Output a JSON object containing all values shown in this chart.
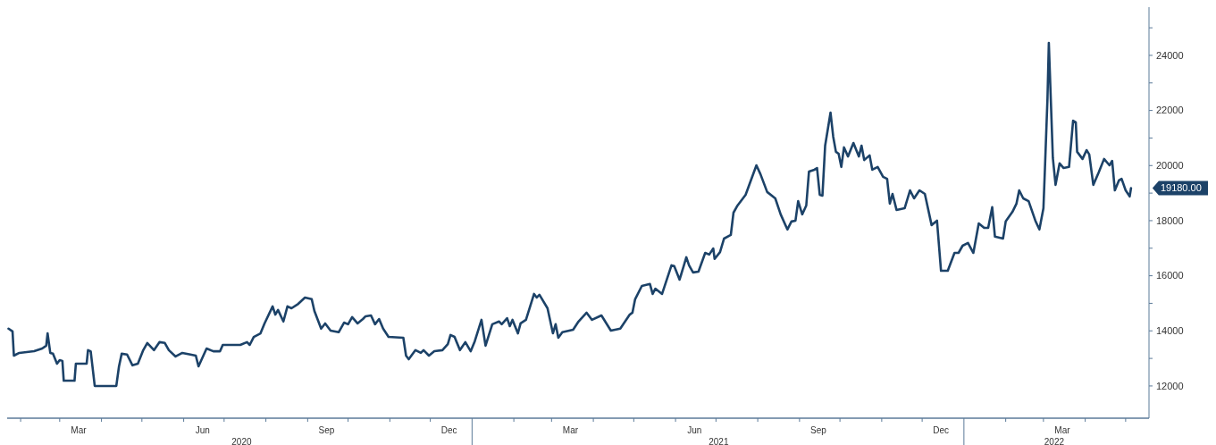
{
  "chart_data": {
    "type": "line",
    "xlim": [
      "2020-01-22",
      "2022-05-17"
    ],
    "x2lim": [
      "2020-01-22",
      "2022-05-17"
    ],
    "ylim": [
      10830,
      25750
    ],
    "xticks": [
      {
        "value": "2020-02-01",
        "label": null
      },
      {
        "value": "2020-03-01",
        "label": null
      },
      {
        "value": "2020-03-15",
        "label": "Mar"
      },
      {
        "value": "2020-04-01",
        "label": null
      },
      {
        "value": "2020-05-01",
        "label": null
      },
      {
        "value": "2020-06-01",
        "label": null
      },
      {
        "value": "2020-06-15",
        "label": "Jun"
      },
      {
        "value": "2020-07-01",
        "label": null
      },
      {
        "value": "2020-08-01",
        "label": null
      },
      {
        "value": "2020-09-01",
        "label": null
      },
      {
        "value": "2020-09-15",
        "label": "Sep"
      },
      {
        "value": "2020-10-01",
        "label": null
      },
      {
        "value": "2020-11-01",
        "label": null
      },
      {
        "value": "2020-12-01",
        "label": null
      },
      {
        "value": "2020-12-15",
        "label": "Dec"
      },
      {
        "value": "2021-02-01",
        "label": null
      },
      {
        "value": "2021-03-01",
        "label": null
      },
      {
        "value": "2021-03-15",
        "label": "Mar"
      },
      {
        "value": "2021-04-01",
        "label": null
      },
      {
        "value": "2021-05-01",
        "label": null
      },
      {
        "value": "2021-06-01",
        "label": null
      },
      {
        "value": "2021-06-15",
        "label": "Jun"
      },
      {
        "value": "2021-07-01",
        "label": null
      },
      {
        "value": "2021-08-01",
        "label": null
      },
      {
        "value": "2021-09-01",
        "label": null
      },
      {
        "value": "2021-09-15",
        "label": "Sep"
      },
      {
        "value": "2021-10-01",
        "label": null
      },
      {
        "value": "2021-11-01",
        "label": null
      },
      {
        "value": "2021-12-01",
        "label": null
      },
      {
        "value": "2021-12-15",
        "label": "Dec"
      },
      {
        "value": "2022-02-01",
        "label": null
      },
      {
        "value": "2022-03-01",
        "label": null
      },
      {
        "value": "2022-03-15",
        "label": "Mar"
      },
      {
        "value": "2022-04-01",
        "label": null
      },
      {
        "value": "2022-05-01",
        "label": null
      }
    ],
    "x2ticks": [
      {
        "value": "2020-07-14",
        "label": "2020"
      },
      {
        "value": "2021-07-03",
        "label": "2021"
      },
      {
        "value": "2022-03-09",
        "label": "2022"
      }
    ],
    "yticks": [
      12000,
      {
        "value": 13000,
        "label": null
      },
      14000,
      {
        "value": 15000,
        "label": null
      },
      16000,
      {
        "value": 17000,
        "label": null
      },
      18000,
      {
        "value": 19000,
        "label": null
      },
      20000,
      {
        "value": 21000,
        "label": null
      },
      22000,
      {
        "value": 23000,
        "label": null
      },
      24000,
      {
        "value": 25000,
        "label": null
      }
    ],
    "annotations": [
      {
        "text": "19180.00",
        "x": "2022-05-05",
        "y": 19180
      }
    ],
    "series": [
      {
        "color": "#1c4268",
        "x": [
          "2020-01-23",
          "2020-01-26",
          "2020-01-27",
          "2020-01-31",
          "2020-02-11",
          "2020-02-17",
          "2020-02-20",
          "2020-02-21",
          "2020-02-23",
          "2020-02-25",
          "2020-02-28",
          "2020-03-01",
          "2020-03-03",
          "2020-03-04",
          "2020-03-12",
          "2020-03-13",
          "2020-03-21",
          "2020-03-22",
          "2020-03-24",
          "2020-03-27",
          "2020-04-12",
          "2020-04-14",
          "2020-04-16",
          "2020-04-20",
          "2020-04-24",
          "2020-04-28",
          "2020-05-02",
          "2020-05-05",
          "2020-05-10",
          "2020-05-14",
          "2020-05-18",
          "2020-05-21",
          "2020-05-26",
          "2020-05-31",
          "2020-06-06",
          "2020-06-10",
          "2020-06-12",
          "2020-06-18",
          "2020-06-23",
          "2020-06-28",
          "2020-06-30",
          "2020-07-13",
          "2020-07-18",
          "2020-07-20",
          "2020-07-23",
          "2020-07-28",
          "2020-07-31",
          "2020-08-06",
          "2020-08-08",
          "2020-08-10",
          "2020-08-14",
          "2020-08-17",
          "2020-08-20",
          "2020-08-25",
          "2020-08-30",
          "2020-09-04",
          "2020-09-06",
          "2020-09-11",
          "2020-09-14",
          "2020-09-18",
          "2020-09-24",
          "2020-09-28",
          "2020-10-01",
          "2020-10-04",
          "2020-10-08",
          "2020-10-12",
          "2020-10-14",
          "2020-10-18",
          "2020-10-21",
          "2020-10-24",
          "2020-10-27",
          "2020-10-31",
          "2020-11-11",
          "2020-11-13",
          "2020-11-15",
          "2020-11-20",
          "2020-11-24",
          "2020-11-26",
          "2020-11-30",
          "2020-12-04",
          "2020-12-10",
          "2020-12-14",
          "2020-12-16",
          "2020-12-19",
          "2020-12-23",
          "2020-12-27",
          "2020-12-31",
          "2021-01-03",
          "2021-01-08",
          "2021-01-11",
          "2021-01-16",
          "2021-01-21",
          "2021-01-23",
          "2021-01-27",
          "2021-01-29",
          "2021-01-31",
          "2021-02-04",
          "2021-02-06",
          "2021-02-10",
          "2021-02-16",
          "2021-02-18",
          "2021-02-20",
          "2021-02-26",
          "2021-03-02",
          "2021-03-04",
          "2021-03-06",
          "2021-03-09",
          "2021-03-17",
          "2021-03-21",
          "2021-03-27",
          "2021-03-31",
          "2021-04-07",
          "2021-04-14",
          "2021-04-21",
          "2021-04-28",
          "2021-04-30",
          "2021-05-02",
          "2021-05-07",
          "2021-05-13",
          "2021-05-15",
          "2021-05-17",
          "2021-05-22",
          "2021-05-29",
          "2021-05-31",
          "2021-06-04",
          "2021-06-09",
          "2021-06-11",
          "2021-06-14",
          "2021-06-18",
          "2021-06-23",
          "2021-06-26",
          "2021-06-29",
          "2021-06-30",
          "2021-07-04",
          "2021-07-07",
          "2021-07-12",
          "2021-07-14",
          "2021-07-17",
          "2021-07-23",
          "2021-07-31",
          "2021-08-03",
          "2021-08-08",
          "2021-08-14",
          "2021-08-18",
          "2021-08-23",
          "2021-08-26",
          "2021-08-29",
          "2021-08-31",
          "2021-09-03",
          "2021-09-06",
          "2021-09-08",
          "2021-09-12",
          "2021-09-14",
          "2021-09-16",
          "2021-09-18",
          "2021-09-20",
          "2021-09-24",
          "2021-09-26",
          "2021-09-28",
          "2021-09-30",
          "2021-10-02",
          "2021-10-04",
          "2021-10-07",
          "2021-10-11",
          "2021-10-15",
          "2021-10-17",
          "2021-10-19",
          "2021-10-23",
          "2021-10-25",
          "2021-10-29",
          "2021-11-02",
          "2021-11-05",
          "2021-11-07",
          "2021-11-09",
          "2021-11-12",
          "2021-11-18",
          "2021-11-22",
          "2021-11-25",
          "2021-11-29",
          "2021-12-03",
          "2021-12-08",
          "2021-12-12",
          "2021-12-15",
          "2021-12-20",
          "2021-12-25",
          "2021-12-28",
          "2021-12-31",
          "2022-01-04",
          "2022-01-08",
          "2022-01-12",
          "2022-01-16",
          "2022-01-19",
          "2022-01-22",
          "2022-01-24",
          "2022-01-30",
          "2022-02-01",
          "2022-02-06",
          "2022-02-09",
          "2022-02-11",
          "2022-02-14",
          "2022-02-18",
          "2022-02-23",
          "2022-02-26",
          "2022-03-01",
          "2022-03-02",
          "2022-03-04",
          "2022-03-05",
          "2022-03-08",
          "2022-03-10",
          "2022-03-13",
          "2022-03-16",
          "2022-03-20",
          "2022-03-23",
          "2022-03-25",
          "2022-03-26",
          "2022-03-30",
          "2022-04-02",
          "2022-04-04",
          "2022-04-07",
          "2022-04-11",
          "2022-04-15",
          "2022-04-19",
          "2022-04-21",
          "2022-04-23",
          "2022-04-26",
          "2022-04-28",
          "2022-05-01",
          "2022-05-04",
          "2022-05-05"
        ],
        "values": [
          14080,
          13980,
          13100,
          13200,
          13260,
          13360,
          13460,
          13910,
          13200,
          13170,
          12810,
          12940,
          12910,
          12190,
          12190,
          12810,
          12810,
          13300,
          13260,
          12000,
          12000,
          12710,
          13170,
          13140,
          12750,
          12810,
          13300,
          13560,
          13300,
          13590,
          13560,
          13300,
          13070,
          13200,
          13140,
          13100,
          12710,
          13360,
          13260,
          13260,
          13490,
          13490,
          13590,
          13490,
          13780,
          13910,
          14270,
          14890,
          14590,
          14760,
          14340,
          14890,
          14820,
          14980,
          15210,
          15150,
          14720,
          14080,
          14270,
          14010,
          13950,
          14300,
          14240,
          14500,
          14270,
          14430,
          14530,
          14560,
          14240,
          14430,
          14080,
          13780,
          13750,
          13100,
          12970,
          13300,
          13200,
          13300,
          13100,
          13260,
          13300,
          13520,
          13850,
          13780,
          13300,
          13590,
          13260,
          13620,
          14400,
          13460,
          14240,
          14340,
          14240,
          14460,
          14170,
          14400,
          13910,
          14270,
          14400,
          15340,
          15210,
          15310,
          14820,
          13910,
          14240,
          13750,
          13950,
          14040,
          14340,
          14660,
          14400,
          14560,
          14010,
          14080,
          14590,
          14660,
          15150,
          15630,
          15700,
          15340,
          15530,
          15340,
          16380,
          16350,
          15860,
          16670,
          16380,
          16120,
          16150,
          16830,
          16770,
          16990,
          16610,
          16860,
          17350,
          17480,
          18290,
          18550,
          18940,
          20010,
          19690,
          19040,
          18810,
          18230,
          17680,
          17970,
          18000,
          18710,
          18230,
          18550,
          19780,
          19850,
          19910,
          18940,
          18910,
          20720,
          21920,
          21050,
          20500,
          20430,
          19950,
          20660,
          20330,
          20820,
          20330,
          20720,
          20200,
          20370,
          19850,
          19950,
          19590,
          19520,
          18620,
          18970,
          18390,
          18450,
          19100,
          18810,
          19100,
          18970,
          17840,
          18000,
          16180,
          16180,
          16830,
          16830,
          17090,
          17190,
          16830,
          17900,
          17740,
          17740,
          18490,
          17420,
          17350,
          17970,
          18320,
          18620,
          19100,
          18810,
          18710,
          18000,
          17680,
          18450,
          19750,
          22440,
          24450,
          20270,
          19300,
          20080,
          19910,
          19950,
          21630,
          21570,
          20500,
          20240,
          20560,
          20400,
          19300,
          19750,
          20240,
          20010,
          20170,
          19100,
          19460,
          19520,
          19100,
          18880,
          19180
        ]
      }
    ]
  }
}
